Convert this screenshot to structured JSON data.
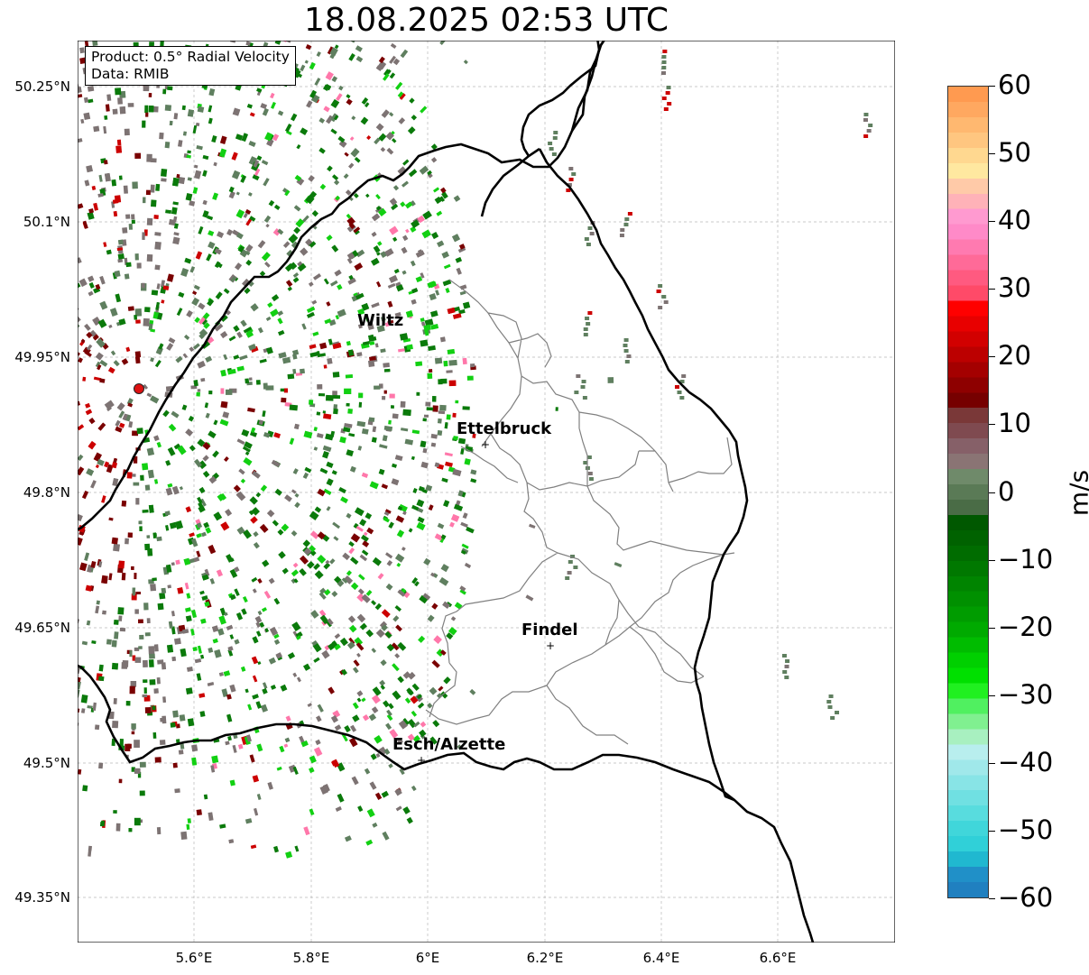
{
  "title": "18.08.2025 02:53 UTC",
  "info_box": {
    "product": "Product: 0.5° Radial Velocity",
    "source": "Data: RMIB"
  },
  "axes": {
    "lat_labels": [
      "50.25°N",
      "50.1°N",
      "49.95°N",
      "49.8°N",
      "49.65°N",
      "49.5°N",
      "49.35°N"
    ],
    "lon_labels": [
      "5.6°E",
      "5.8°E",
      "6°E",
      "6.2°E",
      "6.4°E",
      "6.6°E"
    ],
    "gridlines": true
  },
  "places": [
    {
      "name": "Wiltz",
      "marker": false
    },
    {
      "name": "Ettelbruck",
      "marker": true
    },
    {
      "name": "Findel",
      "marker": true
    },
    {
      "name": "Esch/Alzette",
      "marker": true
    }
  ],
  "radar_site": {
    "color": "#dd1111"
  },
  "colorbar": {
    "label": "m/s",
    "min": -60,
    "max": 60,
    "ticks": [
      "60",
      "50",
      "40",
      "30",
      "20",
      "10",
      "0",
      "−10",
      "−20",
      "−30",
      "−40",
      "−50",
      "−60"
    ],
    "colors_top_to_bottom": [
      "#ff9a50",
      "#ffa860",
      "#ffb870",
      "#ffc680",
      "#ffd890",
      "#ffe8a0",
      "#ffcaa8",
      "#ffb2b8",
      "#ff9ad0",
      "#ff8ac8",
      "#ff7ab0",
      "#ff6a98",
      "#ff5a80",
      "#ff4a68",
      "#ff0000",
      "#e80000",
      "#d20000",
      "#bc0000",
      "#a40000",
      "#8e0000",
      "#760000",
      "#7a3838",
      "#7f4a50",
      "#866068",
      "#8a7474",
      "#6f8a6a",
      "#5a7a56",
      "#4a6c46",
      "#005800",
      "#006200",
      "#006c00",
      "#007800",
      "#008400",
      "#009000",
      "#009c00",
      "#00aa00",
      "#00bc00",
      "#00d000",
      "#00e000",
      "#20f020",
      "#50f060",
      "#80f090",
      "#a8f0c0",
      "#b8eeee",
      "#a0e8ea",
      "#88e4e6",
      "#70e0e2",
      "#58dcde",
      "#40d6da",
      "#30d0d8",
      "#20b8d0",
      "#2090c8",
      "#2080c0"
    ]
  },
  "colors": {
    "border": "#000000",
    "canton_border": "#808080",
    "grid": "#b0b0b0",
    "green_dark": "#0a7a0a",
    "green_bright": "#12d012",
    "gray_brown": "#7d7373",
    "gray_green": "#5f7f5f",
    "red": "#cc0000",
    "dark_red": "#7a0000"
  }
}
